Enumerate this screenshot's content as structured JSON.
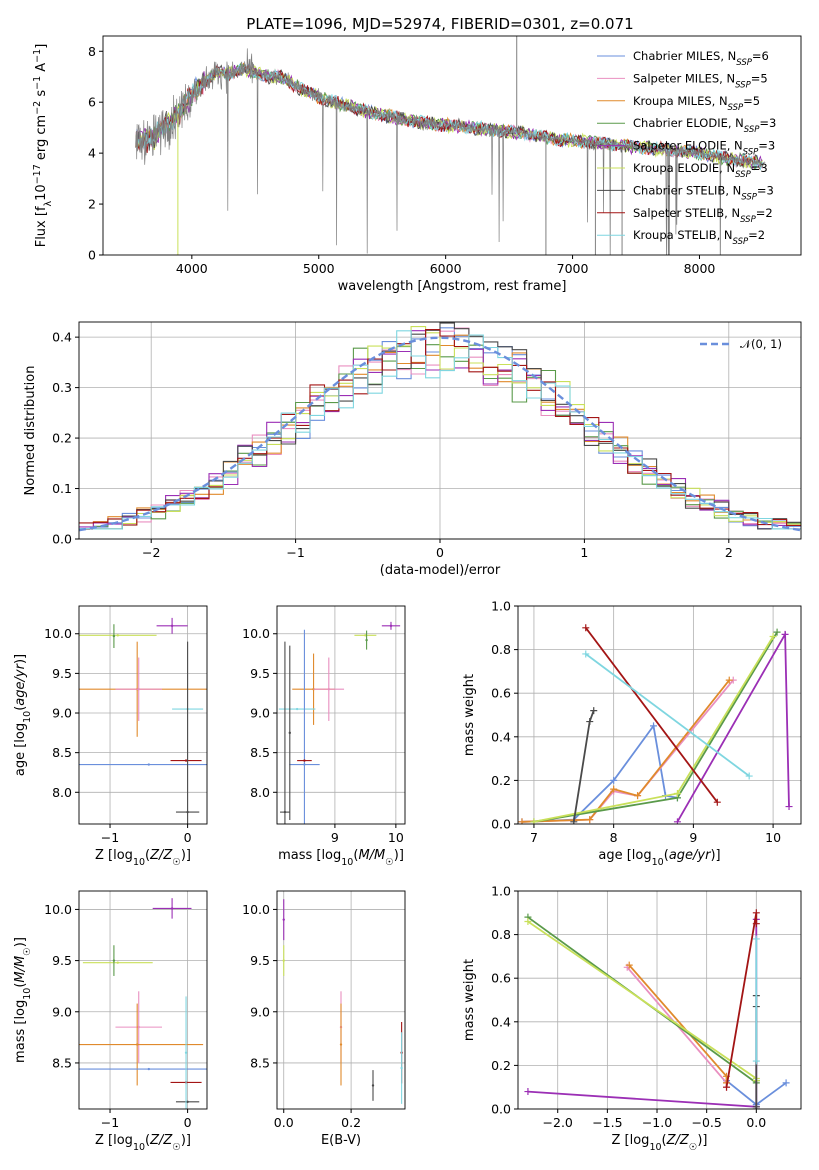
{
  "title": "PLATE=1096, MJD=52974, FIBERID=0301, z=0.071",
  "colors": {
    "Chabrier MILES": "#6a8fdc",
    "Salpeter MILES": "#e98fc0",
    "Kroupa MILES": "#e08a2c",
    "Chabrier ELODIE": "#5a9a4a",
    "Salpeter ELODIE": "#9b2fb5",
    "Kroupa ELODIE": "#c9e05a",
    "Chabrier STELIB": "#4a4a4a",
    "Salpeter STELIB": "#a31515",
    "Kroupa STELIB": "#7fd6e0",
    "Kroupa MILES (lines)": "#e86a2c",
    "Salpeter ELODIE (lines)": "#9b2fb5",
    "data": "#808080"
  },
  "chart_data": [
    {
      "type": "line",
      "panel": "spectrum",
      "title": "PLATE=1096, MJD=52974, FIBERID=0301, z=0.071",
      "xlabel": "wavelength [Angstrom, rest frame]",
      "ylabel": "Flux [fλ10⁻¹⁷ erg cm⁻² s⁻¹ A⁻¹]",
      "xlim": [
        3300,
        8800
      ],
      "ylim": [
        0,
        8.6
      ],
      "xticks": [
        "4000",
        "5000",
        "6000",
        "7000",
        "8000"
      ],
      "yticks": [
        "0",
        "2",
        "4",
        "6",
        "8"
      ],
      "legend_placement": "upper right",
      "legend": [
        "Chabrier MILES, N_SSP=6",
        "Salpeter MILES, N_SSP=5",
        "Kroupa MILES, N_SSP=5",
        "Chabrier ELODIE, N_SSP=3",
        "Salpeter ELODIE, N_SSP=3",
        "Kroupa ELODIE, N_SSP=3",
        "Chabrier STELIB, N_SSP=3",
        "Salpeter STELIB, N_SSP=2",
        "Kroupa STELIB, N_SSP=2"
      ],
      "legend_labels": [
        {
          "pre": "Chabrier MILES, N",
          "sub": "SSP",
          "post": "=6"
        },
        {
          "pre": "Salpeter MILES, N",
          "sub": "SSP",
          "post": "=5"
        },
        {
          "pre": "Kroupa MILES, N",
          "sub": "SSP",
          "post": "=5"
        },
        {
          "pre": "Chabrier ELODIE, N",
          "sub": "SSP",
          "post": "=3"
        },
        {
          "pre": "Salpeter ELODIE, N",
          "sub": "SSP",
          "post": "=3"
        },
        {
          "pre": "Kroupa ELODIE, N",
          "sub": "SSP",
          "post": "=3"
        },
        {
          "pre": "Chabrier STELIB, N",
          "sub": "SSP",
          "post": "=3"
        },
        {
          "pre": "Salpeter STELIB, N",
          "sub": "SSP",
          "post": "=2"
        },
        {
          "pre": "Kroupa STELIB, N",
          "sub": "SSP",
          "post": "=2"
        }
      ],
      "continuum": [
        [
          3550,
          4.5
        ],
        [
          3700,
          4.6
        ],
        [
          3900,
          5.6
        ],
        [
          4000,
          6.3
        ],
        [
          4100,
          6.8
        ],
        [
          4200,
          7.2
        ],
        [
          4300,
          7.1
        ],
        [
          4400,
          7.3
        ],
        [
          4500,
          7.2
        ],
        [
          4600,
          7.0
        ],
        [
          4700,
          7.0
        ],
        [
          4800,
          6.7
        ],
        [
          4900,
          6.4
        ],
        [
          5000,
          6.2
        ],
        [
          5200,
          5.9
        ],
        [
          5400,
          5.6
        ],
        [
          5600,
          5.4
        ],
        [
          5800,
          5.2
        ],
        [
          6000,
          5.1
        ],
        [
          6200,
          5.0
        ],
        [
          6400,
          4.9
        ],
        [
          6600,
          4.8
        ],
        [
          6800,
          4.6
        ],
        [
          7000,
          4.5
        ],
        [
          7200,
          4.4
        ],
        [
          7400,
          4.3
        ],
        [
          7600,
          4.2
        ],
        [
          7800,
          4.1
        ],
        [
          8000,
          4.0
        ],
        [
          8200,
          3.8
        ],
        [
          8500,
          3.6
        ]
      ]
    },
    {
      "type": "histogram",
      "panel": "residuals",
      "xlabel": "(data-model)/error",
      "ylabel": "Normed distribution",
      "xlim": [
        -2.5,
        2.5
      ],
      "ylim": [
        0,
        0.43
      ],
      "xticks": [
        "−2",
        "−1",
        "0",
        "1",
        "2"
      ],
      "yticks": [
        "0.0",
        "0.1",
        "0.2",
        "0.3",
        "0.4"
      ],
      "legend": [
        "𝒩(0, 1)"
      ],
      "legend_placement": "upper right",
      "bin_width": 0.1,
      "model": {
        "name": "𝒩(0, 1)",
        "mean": 0,
        "sigma": 1
      }
    },
    {
      "type": "errorbar",
      "panel": "age-vs-Z",
      "xlabel": "Z [log10(Z/Z☉)]",
      "ylabel": "age [log10(age/yr)]",
      "xlim": [
        -1.4,
        0.25
      ],
      "ylim": [
        7.6,
        10.35
      ],
      "xticks": [
        "−1",
        "0"
      ],
      "yticks": [
        "8.0",
        "8.5",
        "9.0",
        "9.5",
        "10.0"
      ],
      "points": [
        {
          "model": "Kroupa ELODIE",
          "x": -0.9,
          "xerr": 0.5,
          "y": 9.98,
          "yerr": 0.0
        },
        {
          "model": "Chabrier ELODIE",
          "x": -0.95,
          "xerr": 0.0,
          "y": 9.97,
          "yerr": 0.15
        },
        {
          "model": "Salpeter ELODIE",
          "x": -0.2,
          "xerr": 0.2,
          "y": 10.1,
          "yerr": 0.1
        },
        {
          "model": "Kroupa MILES",
          "x": -0.65,
          "xerr": 1.15,
          "y": 9.3,
          "yerr": 0.6
        },
        {
          "model": "Salpeter MILES",
          "x": -0.63,
          "xerr": 0.3,
          "y": 9.3,
          "yerr": 0.4
        },
        {
          "model": "Kroupa STELIB",
          "x": 0.0,
          "xerr": 0.2,
          "y": 9.05,
          "yerr": 0.0
        },
        {
          "model": "Chabrier MILES",
          "x": -0.5,
          "xerr": 0.95,
          "y": 8.35,
          "yerr": 0.0
        },
        {
          "model": "Salpeter STELIB",
          "x": -0.02,
          "xerr": 0.2,
          "y": 8.4,
          "yerr": 0.0
        },
        {
          "model": "Chabrier STELIB",
          "x": 0.0,
          "xerr": 0.15,
          "y": 7.75,
          "yerr": 2.15
        }
      ]
    },
    {
      "type": "errorbar",
      "panel": "age-vs-mass",
      "xlabel": "mass [log10(M/M☉)]",
      "ylabel": "",
      "xlim": [
        8.05,
        10.15
      ],
      "ylim": [
        7.6,
        10.35
      ],
      "xticks": [
        "9",
        "10"
      ],
      "yticks": [
        "8.0",
        "8.5",
        "9.0",
        "9.5",
        "10.0"
      ],
      "points": [
        {
          "model": "Kroupa ELODIE",
          "x": 9.5,
          "xerr": 0.18,
          "y": 9.98,
          "yerr": 0.0
        },
        {
          "model": "Chabrier ELODIE",
          "x": 9.52,
          "xerr": 0.0,
          "y": 9.92,
          "yerr": 0.12
        },
        {
          "model": "Salpeter ELODIE",
          "x": 9.92,
          "xerr": 0.15,
          "y": 10.1,
          "yerr": 0.05
        },
        {
          "model": "Kroupa MILES",
          "x": 8.65,
          "xerr": 0.35,
          "y": 9.3,
          "yerr": 0.45
        },
        {
          "model": "Salpeter MILES",
          "x": 8.9,
          "xerr": 0.25,
          "y": 9.3,
          "yerr": 0.4
        },
        {
          "model": "Kroupa STELIB",
          "x": 8.38,
          "xerr": 0.3,
          "y": 9.05,
          "yerr": 0.0
        },
        {
          "model": "Chabrier MILES",
          "x": 8.5,
          "xerr": 0.25,
          "y": 8.35,
          "yerr": 1.7
        },
        {
          "model": "Salpeter STELIB",
          "x": 8.5,
          "xerr": 0.12,
          "y": 8.4,
          "yerr": 0.0
        },
        {
          "model": "Chabrier STELIB",
          "x": 8.18,
          "xerr": 0.08,
          "y": 7.75,
          "yerr": 2.15
        },
        {
          "model": "Chabrier STELIB",
          "x": 8.26,
          "xerr": 0.0,
          "y": 8.75,
          "yerr": 1.1
        }
      ]
    },
    {
      "type": "line",
      "panel": "mass-weight-vs-age",
      "xlabel": "age [log10(age/yr)]",
      "ylabel": "mass weight",
      "xlim": [
        6.8,
        10.35
      ],
      "ylim": [
        0,
        1.0
      ],
      "xticks": [
        "7",
        "8",
        "9",
        "10"
      ],
      "yticks": [
        "0.0",
        "0.2",
        "0.4",
        "0.6",
        "0.8",
        "1.0"
      ],
      "series": [
        {
          "model": "Chabrier MILES",
          "x": [
            6.85,
            7.5,
            8.0,
            8.5,
            8.65,
            8.8
          ],
          "y": [
            0.01,
            0.02,
            0.2,
            0.45,
            0.13,
            0.12
          ]
        },
        {
          "model": "Salpeter MILES",
          "x": [
            6.85,
            7.7,
            8.0,
            8.3,
            9.5
          ],
          "y": [
            0.01,
            0.02,
            0.15,
            0.13,
            0.66
          ]
        },
        {
          "model": "Kroupa MILES",
          "x": [
            6.85,
            7.7,
            8.0,
            8.3,
            9.45
          ],
          "y": [
            0.01,
            0.02,
            0.16,
            0.13,
            0.66
          ]
        },
        {
          "model": "Chabrier ELODIE",
          "x": [
            7.0,
            8.8,
            10.05
          ],
          "y": [
            0.01,
            0.12,
            0.88
          ]
        },
        {
          "model": "Salpeter ELODIE",
          "x": [
            8.8,
            10.15,
            10.2
          ],
          "y": [
            0.01,
            0.87,
            0.08
          ]
        },
        {
          "model": "Kroupa ELODIE",
          "x": [
            7.0,
            8.8,
            10.0
          ],
          "y": [
            0.01,
            0.14,
            0.86
          ]
        },
        {
          "model": "Chabrier STELIB",
          "x": [
            7.5,
            7.7,
            7.75
          ],
          "y": [
            0.01,
            0.47,
            0.52
          ]
        },
        {
          "model": "Salpeter STELIB",
          "x": [
            7.65,
            9.3
          ],
          "y": [
            0.9,
            0.1
          ]
        },
        {
          "model": "Kroupa STELIB",
          "x": [
            7.65,
            9.7
          ],
          "y": [
            0.78,
            0.22
          ]
        }
      ]
    },
    {
      "type": "errorbar",
      "panel": "mass-vs-Z",
      "xlabel": "Z [log10(Z/Z☉)]",
      "ylabel": "mass [log10(M/M☉)]",
      "xlim": [
        -1.4,
        0.25
      ],
      "ylim": [
        8.05,
        10.18
      ],
      "xticks": [
        "−1",
        "0"
      ],
      "yticks": [
        "8.5",
        "9.0",
        "9.5",
        "10.0"
      ],
      "points": [
        {
          "model": "Kroupa ELODIE",
          "x": -0.9,
          "xerr": 0.45,
          "y": 9.48,
          "yerr": 0.0
        },
        {
          "model": "Chabrier ELODIE",
          "x": -0.95,
          "xerr": 0.0,
          "y": 9.5,
          "yerr": 0.15
        },
        {
          "model": "Salpeter ELODIE",
          "x": -0.2,
          "xerr": 0.25,
          "y": 10.01,
          "yerr": 0.1
        },
        {
          "model": "Salpeter MILES",
          "x": -0.63,
          "xerr": 0.3,
          "y": 8.85,
          "yerr": 0.35
        },
        {
          "model": "Kroupa MILES",
          "x": -0.65,
          "xerr": 0.85,
          "y": 8.68,
          "yerr": 0.4
        },
        {
          "model": "Chabrier MILES",
          "x": -0.5,
          "xerr": 0.95,
          "y": 8.44,
          "yerr": 0.0
        },
        {
          "model": "Salpeter STELIB",
          "x": -0.02,
          "xerr": 0.2,
          "y": 8.31,
          "yerr": 0.0
        },
        {
          "model": "Chabrier STELIB",
          "x": 0.0,
          "xerr": 0.15,
          "y": 8.12,
          "yerr": 0.0
        },
        {
          "model": "Kroupa STELIB",
          "x": -0.02,
          "xerr": 0.0,
          "y": 8.6,
          "yerr": 0.55
        }
      ]
    },
    {
      "type": "errorbar",
      "panel": "mass-vs-EBV",
      "xlabel": "E(B-V)",
      "ylabel": "",
      "xlim": [
        -0.02,
        0.36
      ],
      "ylim": [
        8.05,
        10.18
      ],
      "xticks": [
        "0.0",
        "0.2"
      ],
      "yticks": [
        "8.5",
        "9.0",
        "9.5",
        "10.0"
      ],
      "points": [
        {
          "model": "Salpeter ELODIE",
          "x": 0.0,
          "xerr": 0.0,
          "y": 9.9,
          "yerr": 0.2
        },
        {
          "model": "Kroupa ELODIE",
          "x": 0.0,
          "xerr": 0.0,
          "y": 9.5,
          "yerr": 0.15
        },
        {
          "model": "Salpeter MILES",
          "x": 0.17,
          "xerr": 0.0,
          "y": 8.85,
          "yerr": 0.35
        },
        {
          "model": "Kroupa MILES",
          "x": 0.17,
          "xerr": 0.0,
          "y": 8.68,
          "yerr": 0.4
        },
        {
          "model": "Chabrier STELIB",
          "x": 0.265,
          "xerr": 0.0,
          "y": 8.28,
          "yerr": 0.15
        },
        {
          "model": "Salpeter STELIB",
          "x": 0.35,
          "xerr": 0.0,
          "y": 8.6,
          "yerr": 0.3
        },
        {
          "model": "Kroupa STELIB",
          "x": 0.35,
          "xerr": 0.0,
          "y": 8.45,
          "yerr": 0.35
        }
      ]
    },
    {
      "type": "line",
      "panel": "mass-weight-vs-Z",
      "xlabel": "Z [log10(Z/Z☉)]",
      "ylabel": "mass weight",
      "xlim": [
        -2.4,
        0.45
      ],
      "ylim": [
        0,
        1.0
      ],
      "xticks": [
        "−2.0",
        "−1.5",
        "−1.0",
        "−0.5",
        "0.0"
      ],
      "yticks": [
        "0.0",
        "0.2",
        "0.4",
        "0.6",
        "0.8",
        "1.0"
      ],
      "series": [
        {
          "model": "Chabrier MILES",
          "x": [
            -0.3,
            0.0,
            0.3
          ],
          "y": [
            0.13,
            0.02,
            0.12
          ]
        },
        {
          "model": "Salpeter MILES",
          "x": [
            -1.3,
            -0.3,
            -0.3
          ],
          "y": [
            0.65,
            0.12,
            0.1
          ]
        },
        {
          "model": "Kroupa MILES",
          "x": [
            -1.28,
            -0.3,
            -0.3
          ],
          "y": [
            0.66,
            0.15,
            0.12
          ]
        },
        {
          "model": "Chabrier ELODIE",
          "x": [
            -2.3,
            0.0,
            0.0
          ],
          "y": [
            0.88,
            0.12,
            0.13
          ]
        },
        {
          "model": "Salpeter ELODIE",
          "x": [
            -2.3,
            0.0,
            0.0
          ],
          "y": [
            0.08,
            0.01,
            0.87
          ]
        },
        {
          "model": "Kroupa ELODIE",
          "x": [
            -2.3,
            0.0,
            0.0
          ],
          "y": [
            0.86,
            0.14,
            0.13
          ]
        },
        {
          "model": "Chabrier STELIB",
          "x": [
            0.0,
            0.0,
            0.0,
            0.0
          ],
          "y": [
            0.01,
            0.47,
            0.52,
            0.0
          ]
        },
        {
          "model": "Salpeter STELIB",
          "x": [
            -0.3,
            0.0,
            0.0
          ],
          "y": [
            0.1,
            0.9,
            0.85
          ]
        },
        {
          "model": "Kroupa STELIB",
          "x": [
            0.0,
            0.0
          ],
          "y": [
            0.78,
            0.22
          ]
        }
      ]
    }
  ]
}
